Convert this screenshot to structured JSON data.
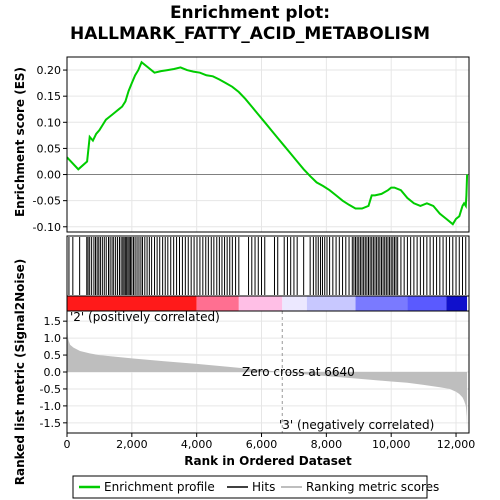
{
  "chart_data": {
    "type": "line",
    "title_line1": "Enrichment plot:",
    "title_line2": "HALLMARK_FATTY_ACID_METABOLISM",
    "es_ylabel": "Enrichment score (ES)",
    "metric_ylabel": "Ranked list metric (Signal2Noise)",
    "xlabel": "Rank in Ordered Dataset",
    "xlim": [
      0,
      12400
    ],
    "es_ylim": [
      -0.11,
      0.225
    ],
    "metric_ylim": [
      -1.8,
      1.8
    ],
    "x_ticks": [
      "0",
      "2,000",
      "4,000",
      "6,000",
      "8,000",
      "10,000",
      "12,000"
    ],
    "es_ticks": [
      "0.20",
      "0.15",
      "0.10",
      "0.05",
      "0.00",
      "-0.05",
      "-0.10"
    ],
    "metric_ticks": [
      "1.5",
      "1.0",
      "0.5",
      "0.0",
      "-0.5",
      "-1.0",
      "-1.5"
    ],
    "zero_cross_label": "Zero cross at 6640",
    "zero_cross_rank": 6640,
    "pos_label": "'2' (positively correlated)",
    "neg_label": "'3' (negatively correlated)",
    "legend": [
      "Enrichment profile",
      "Hits",
      "Ranking metric scores"
    ],
    "colors": {
      "profile": "#00cc00",
      "pos": "#ff0000",
      "neg": "#0000ff",
      "metric": "#bebebe",
      "pos_label": "#ff0000",
      "neg_label": "#0000ff"
    },
    "es_profile": {
      "x": [
        0,
        350,
        620,
        700,
        800,
        900,
        1000,
        1100,
        1200,
        1300,
        1400,
        1500,
        1600,
        1700,
        1800,
        1900,
        2000,
        2100,
        2200,
        2300,
        2500,
        2700,
        2900,
        3100,
        3300,
        3500,
        3700,
        3900,
        4100,
        4300,
        4500,
        4700,
        4900,
        5100,
        5300,
        5500,
        5700,
        5900,
        6100,
        6300,
        6500,
        6700,
        6900,
        7100,
        7300,
        7500,
        7700,
        7900,
        8100,
        8300,
        8500,
        8700,
        8900,
        9100,
        9300,
        9400,
        9500,
        9700,
        9900,
        10000,
        10100,
        10300,
        10500,
        10700,
        10900,
        11100,
        11300,
        11500,
        11700,
        11900,
        12000,
        12100,
        12200,
        12250,
        12300,
        12320,
        12340
      ],
      "y": [
        0.033,
        0.01,
        0.025,
        0.072,
        0.065,
        0.078,
        0.085,
        0.095,
        0.105,
        0.11,
        0.115,
        0.12,
        0.125,
        0.13,
        0.14,
        0.16,
        0.175,
        0.19,
        0.2,
        0.215,
        0.205,
        0.195,
        0.198,
        0.2,
        0.202,
        0.205,
        0.2,
        0.197,
        0.195,
        0.19,
        0.188,
        0.182,
        0.175,
        0.168,
        0.158,
        0.145,
        0.13,
        0.115,
        0.1,
        0.085,
        0.07,
        0.055,
        0.04,
        0.025,
        0.01,
        -0.003,
        -0.015,
        -0.022,
        -0.03,
        -0.04,
        -0.05,
        -0.058,
        -0.065,
        -0.065,
        -0.06,
        -0.04,
        -0.04,
        -0.037,
        -0.03,
        -0.025,
        -0.025,
        -0.03,
        -0.045,
        -0.055,
        -0.06,
        -0.055,
        -0.06,
        -0.075,
        -0.085,
        -0.095,
        -0.085,
        -0.08,
        -0.06,
        -0.055,
        -0.06,
        -0.04,
        0.0
      ]
    },
    "hits": [
      60,
      180,
      390,
      610,
      650,
      700,
      760,
      830,
      880,
      930,
      980,
      1030,
      1090,
      1150,
      1210,
      1280,
      1330,
      1390,
      1440,
      1500,
      1560,
      1620,
      1670,
      1720,
      1760,
      1800,
      1840,
      1880,
      1920,
      1960,
      2000,
      2050,
      2100,
      2160,
      2220,
      2280,
      2330,
      2400,
      2470,
      2540,
      2610,
      2700,
      2780,
      2860,
      2950,
      3030,
      3110,
      3200,
      3290,
      3380,
      3470,
      3560,
      3650,
      3740,
      3830,
      3920,
      4010,
      4100,
      4190,
      4280,
      4360,
      4450,
      4530,
      4620,
      4700,
      4780,
      4860,
      4940,
      5020,
      5100,
      5200,
      5300,
      5600,
      5700,
      5800,
      5900,
      6000,
      6100,
      6400,
      6500,
      6700,
      6800,
      6900,
      7000,
      7100,
      7300,
      7500,
      7600,
      7680,
      7750,
      7820,
      7880,
      7950,
      8020,
      8100,
      8200,
      8300,
      8400,
      8500,
      8600,
      8700,
      8800,
      8850,
      8900,
      8950,
      9000,
      9050,
      9100,
      9150,
      9200,
      9250,
      9300,
      9350,
      9400,
      9450,
      9500,
      9550,
      9600,
      9650,
      9700,
      9750,
      9800,
      9850,
      9900,
      9950,
      10000,
      10050,
      10100,
      10150,
      10200,
      10300,
      10400,
      10500,
      10600,
      10700,
      10800,
      10900,
      11000,
      11100,
      11200,
      11300,
      11400,
      11500,
      11600,
      11700,
      11800,
      11900,
      12000,
      12100,
      12200,
      12300
    ],
    "metric_curve": {
      "x": [
        0,
        10,
        30,
        60,
        100,
        200,
        400,
        700,
        1000,
        1500,
        2000,
        3000,
        4000,
        5000,
        6000,
        6640,
        7000,
        8000,
        9000,
        10000,
        10500,
        11000,
        11500,
        11800,
        12000,
        12100,
        12200,
        12250,
        12300,
        12330,
        12340
      ],
      "y": [
        1.65,
        1.2,
        1.0,
        0.9,
        0.8,
        0.72,
        0.62,
        0.55,
        0.5,
        0.45,
        0.4,
        0.32,
        0.24,
        0.15,
        0.06,
        0.0,
        -0.04,
        -0.12,
        -0.2,
        -0.28,
        -0.32,
        -0.38,
        -0.45,
        -0.5,
        -0.58,
        -0.65,
        -0.75,
        -0.85,
        -1.0,
        -1.3,
        -1.7
      ]
    },
    "band": [
      {
        "x0": 0,
        "x1": 4000,
        "color": "#ff1a1a"
      },
      {
        "x0": 4000,
        "x1": 5300,
        "color": "#ff6f91"
      },
      {
        "x0": 5300,
        "x1": 6640,
        "color": "#ffbfe6"
      },
      {
        "x0": 6640,
        "x1": 7400,
        "color": "#ece8ff"
      },
      {
        "x0": 7400,
        "x1": 8900,
        "color": "#c8c8ff"
      },
      {
        "x0": 8900,
        "x1": 10500,
        "color": "#7a7aff"
      },
      {
        "x0": 10500,
        "x1": 11700,
        "color": "#5a5aff"
      },
      {
        "x0": 11700,
        "x1": 12340,
        "color": "#1010cc"
      }
    ]
  }
}
